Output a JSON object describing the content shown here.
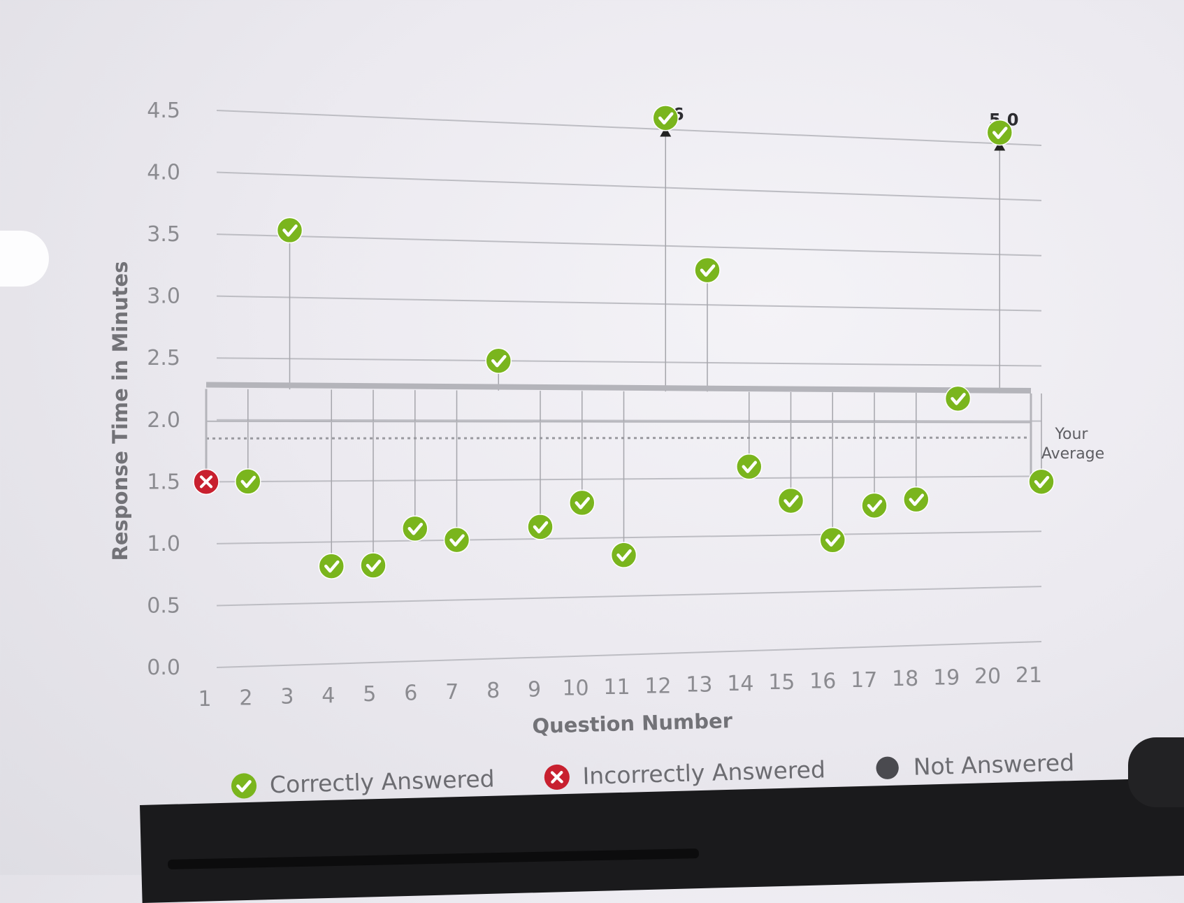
{
  "chart_data": {
    "type": "scatter",
    "title": "",
    "xlabel": "Question Number",
    "ylabel": "Response Time in Minutes",
    "ylim": [
      0,
      4.5
    ],
    "yticks": [
      "0.0",
      "0.5",
      "1.0",
      "1.5",
      "2.0",
      "2.5",
      "3.0",
      "3.5",
      "4.0",
      "4.5"
    ],
    "xticks": [
      "1",
      "2",
      "3",
      "4",
      "5",
      "6",
      "7",
      "8",
      "9",
      "10",
      "11",
      "12",
      "13",
      "14",
      "15",
      "16",
      "17",
      "18",
      "19",
      "20",
      "21"
    ],
    "average": 2.0,
    "average_label": [
      "Your",
      "Average"
    ],
    "points": [
      {
        "q": 1,
        "value": 1.5,
        "status": "incorrect"
      },
      {
        "q": 2,
        "value": 1.5,
        "status": "correct"
      },
      {
        "q": 3,
        "value": 3.55,
        "status": "correct"
      },
      {
        "q": 4,
        "value": 0.8,
        "status": "correct"
      },
      {
        "q": 5,
        "value": 0.8,
        "status": "correct"
      },
      {
        "q": 6,
        "value": 1.1,
        "status": "correct"
      },
      {
        "q": 7,
        "value": 1.0,
        "status": "correct"
      },
      {
        "q": 8,
        "value": 2.5,
        "status": "correct"
      },
      {
        "q": 9,
        "value": 1.1,
        "status": "correct"
      },
      {
        "q": 10,
        "value": 1.3,
        "status": "correct"
      },
      {
        "q": 11,
        "value": 0.85,
        "status": "correct"
      },
      {
        "q": 12,
        "value": 4.6,
        "status": "correct",
        "capped": true,
        "cap_label": "6"
      },
      {
        "q": 13,
        "value": 3.3,
        "status": "correct"
      },
      {
        "q": 14,
        "value": 1.6,
        "status": "correct"
      },
      {
        "q": 15,
        "value": 1.3,
        "status": "correct"
      },
      {
        "q": 16,
        "value": 0.95,
        "status": "correct"
      },
      {
        "q": 17,
        "value": 1.25,
        "status": "correct"
      },
      {
        "q": 18,
        "value": 1.3,
        "status": "correct"
      },
      {
        "q": 19,
        "value": 2.2,
        "status": "correct"
      },
      {
        "q": 20,
        "value": 4.6,
        "status": "correct",
        "capped": true,
        "cap_label": "5.0"
      },
      {
        "q": 21,
        "value": 1.45,
        "status": "correct"
      }
    ]
  },
  "legend": [
    {
      "label": "Correctly Answered",
      "status": "correct"
    },
    {
      "label": "Incorrectly Answered",
      "status": "incorrect"
    },
    {
      "label": "Not Answered",
      "status": "none"
    }
  ],
  "colors": {
    "correct": "#7ab51d",
    "incorrect": "#c8202f",
    "none": "#4a4a4f",
    "grid": "#bdbdc3",
    "average_band": "#b4b4ba"
  }
}
